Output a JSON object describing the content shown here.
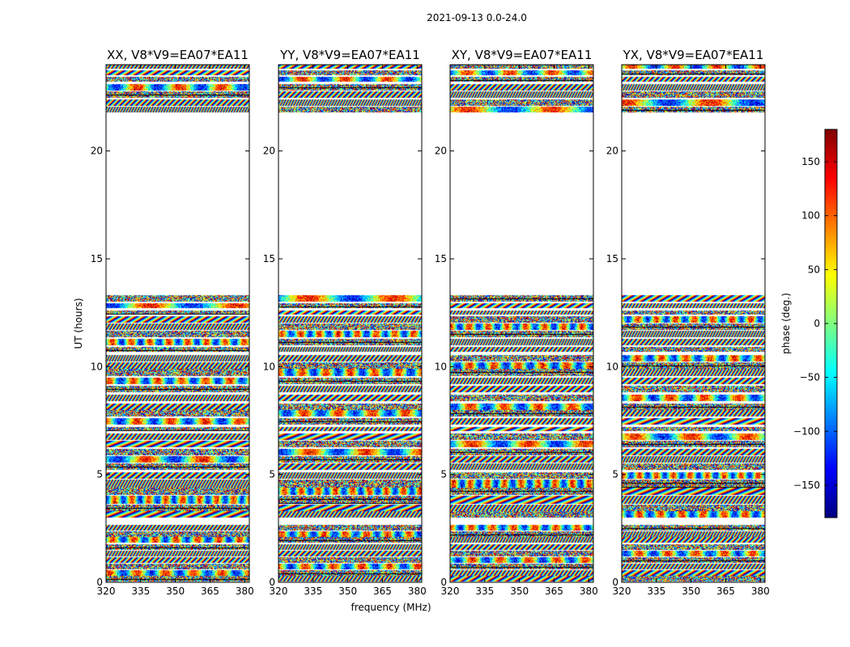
{
  "figure_title": "2021-09-13 0.0-24.0",
  "colors": {
    "axis": "#000000",
    "background": "#ffffff",
    "colormap": [
      "#00007f",
      "#0000ff",
      "#007fff",
      "#00ffff",
      "#7fff7f",
      "#ffff00",
      "#ff7f00",
      "#ff0000",
      "#7f0000"
    ]
  },
  "chart_data": {
    "type": "heatmap",
    "xlabel": "frequency (MHz)",
    "ylabel": "UT (hours)",
    "xlim": [
      320,
      382
    ],
    "ylim": [
      0,
      24
    ],
    "x_ticks": [
      "320",
      "335",
      "350",
      "365",
      "380"
    ],
    "y_ticks": [
      "0",
      "5",
      "10",
      "15",
      "20"
    ],
    "colorbar": {
      "label": "phase (deg.)",
      "range": [
        -180,
        180
      ],
      "ticks": [
        "150",
        "100",
        "50",
        "0",
        "−50",
        "−100",
        "−150"
      ]
    },
    "panels": [
      {
        "title": "XX, V8*V9=EA07*EA11"
      },
      {
        "title": "YY, V8*V9=EA07*EA11"
      },
      {
        "title": "XY, V8*V9=EA07*EA11"
      },
      {
        "title": "YX, V8*V9=EA07*EA11"
      }
    ],
    "data_segments_hours": [
      [
        0.05,
        0.3
      ],
      [
        0.3,
        0.55
      ],
      [
        0.6,
        0.85
      ],
      [
        0.9,
        1.15
      ],
      [
        1.2,
        1.45
      ],
      [
        1.5,
        1.75
      ],
      [
        1.85,
        2.1
      ],
      [
        2.1,
        2.35
      ],
      [
        2.4,
        2.65
      ],
      [
        3.0,
        3.3
      ],
      [
        3.3,
        3.6
      ],
      [
        3.65,
        4.0
      ],
      [
        4.05,
        4.4
      ],
      [
        4.4,
        4.75
      ],
      [
        4.8,
        5.1
      ],
      [
        5.2,
        5.5
      ],
      [
        5.55,
        5.85
      ],
      [
        5.9,
        6.2
      ],
      [
        6.25,
        6.55
      ],
      [
        6.6,
        6.9
      ],
      [
        7.0,
        7.2
      ],
      [
        7.3,
        7.6
      ],
      [
        7.7,
        8.0
      ],
      [
        8.0,
        8.3
      ],
      [
        8.4,
        8.7
      ],
      [
        8.8,
        9.1
      ],
      [
        9.2,
        9.5
      ],
      [
        9.55,
        9.9
      ],
      [
        9.9,
        10.2
      ],
      [
        10.25,
        10.55
      ],
      [
        10.7,
        10.9
      ],
      [
        11.0,
        11.3
      ],
      [
        11.35,
        11.65
      ],
      [
        11.7,
        12.0
      ],
      [
        12.05,
        12.35
      ],
      [
        12.4,
        12.6
      ],
      [
        12.7,
        12.95
      ],
      [
        13.0,
        13.3
      ],
      [
        21.8,
        22.05
      ],
      [
        22.1,
        22.4
      ],
      [
        22.45,
        22.75
      ],
      [
        22.8,
        23.1
      ],
      [
        23.2,
        23.45
      ],
      [
        23.5,
        23.75
      ],
      [
        23.8,
        24.0
      ]
    ]
  }
}
